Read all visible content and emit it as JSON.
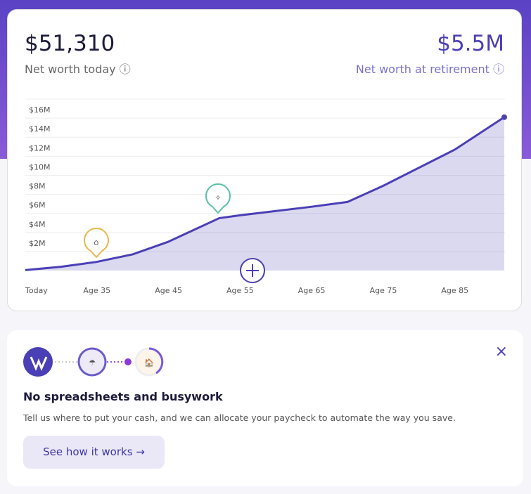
{
  "summary": {
    "today_value": "$51,310",
    "today_label": "Net worth today",
    "retire_value": "$5.5M",
    "retire_label": "Net worth at retirement"
  },
  "chart_data": {
    "type": "area",
    "x": [
      25,
      30,
      34.9,
      40,
      44.9,
      52.1,
      55,
      65,
      70,
      75,
      85,
      91.9
    ],
    "values": [
      0.05,
      0.4,
      0.9,
      1.7,
      3.0,
      5.5,
      5.8,
      6.7,
      7.2,
      8.9,
      12.7,
      16.1
    ],
    "color": "#4a3fb5",
    "xlim": [
      25,
      92
    ],
    "xticks": [
      {
        "value": 25,
        "label": "Today"
      },
      {
        "value": 35,
        "label": "Age 35"
      },
      {
        "value": 45,
        "label": "Age 45"
      },
      {
        "value": 55,
        "label": "Age 55"
      },
      {
        "value": 65,
        "label": "Age 65"
      },
      {
        "value": 75,
        "label": "Age 75"
      },
      {
        "value": 85,
        "label": "Age 85"
      }
    ],
    "ylim": [
      0,
      18
    ],
    "yticks": [
      {
        "value": 2,
        "label": "$2M"
      },
      {
        "value": 4,
        "label": "$4M"
      },
      {
        "value": 6,
        "label": "$6M"
      },
      {
        "value": 8,
        "label": "$8M"
      },
      {
        "value": 10,
        "label": "$10M"
      },
      {
        "value": 12,
        "label": "$12M"
      },
      {
        "value": 14,
        "label": "$14M"
      },
      {
        "value": 16,
        "label": "$16M"
      }
    ],
    "grid": true
  },
  "card": {
    "title": "No spreadsheets and busywork",
    "text": "Tell us where to put your cash, and we can allocate your paycheck to automate the way you save.",
    "button": "See how it works →",
    "close": "×"
  }
}
